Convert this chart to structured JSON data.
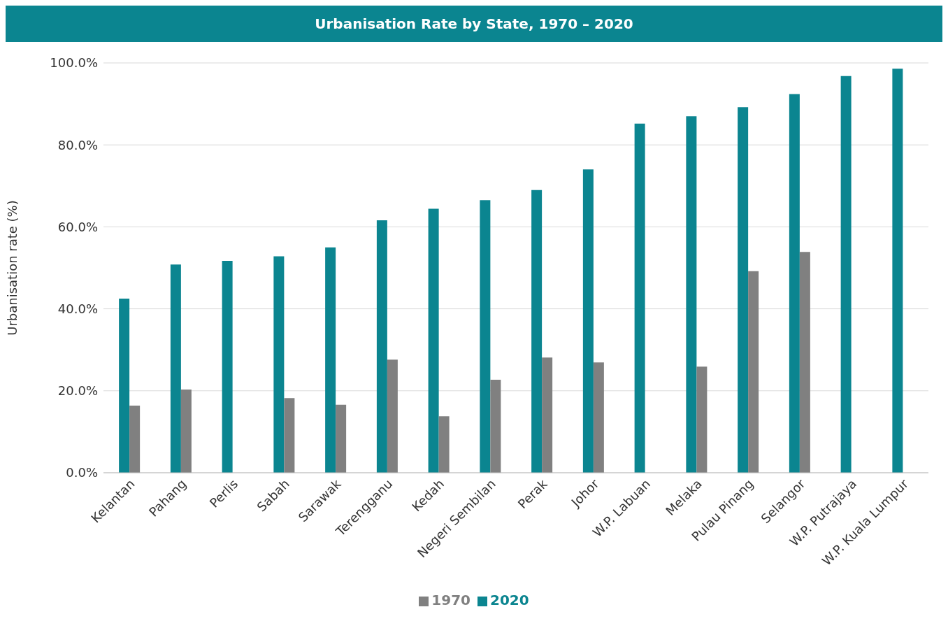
{
  "chart_data": {
    "type": "bar",
    "title": "Urbanisation Rate by State, 1970 – 2020",
    "ylabel": "Urbanisation rate (%)",
    "categories": [
      "Kelantan",
      "Pahang",
      "Perlis",
      "Sabah",
      "Sarawak",
      "Terengganu",
      "Kedah",
      "Negeri Sembilan",
      "Perak",
      "Johor",
      "W.P. Labuan",
      "Melaka",
      "Pulau Pinang",
      "Selangor",
      "W.P. Putrajaya",
      "W.P. Kuala Lumpur"
    ],
    "series": [
      {
        "name": "2020",
        "color": "#0b8590",
        "values": [
          42.5,
          50.8,
          51.7,
          52.8,
          55.0,
          61.6,
          64.4,
          66.5,
          69.0,
          74.0,
          85.2,
          87.0,
          89.2,
          92.4,
          96.8,
          98.6
        ]
      },
      {
        "name": "1970",
        "color": "#808080",
        "values": [
          16.4,
          20.3,
          null,
          18.2,
          16.6,
          27.6,
          13.8,
          22.7,
          28.1,
          26.9,
          null,
          25.9,
          49.2,
          53.9,
          null,
          null
        ]
      }
    ],
    "ylim": [
      0,
      100
    ],
    "yticks": [
      {
        "value": 0,
        "label": "0.0%"
      },
      {
        "value": 20,
        "label": "20.0%"
      },
      {
        "value": 40,
        "label": "40.0%"
      },
      {
        "value": 60,
        "label": "60.0%"
      },
      {
        "value": 80,
        "label": "80.0%"
      },
      {
        "value": 100,
        "label": "100.0%"
      }
    ],
    "grid": "y",
    "legend": "bottom"
  }
}
